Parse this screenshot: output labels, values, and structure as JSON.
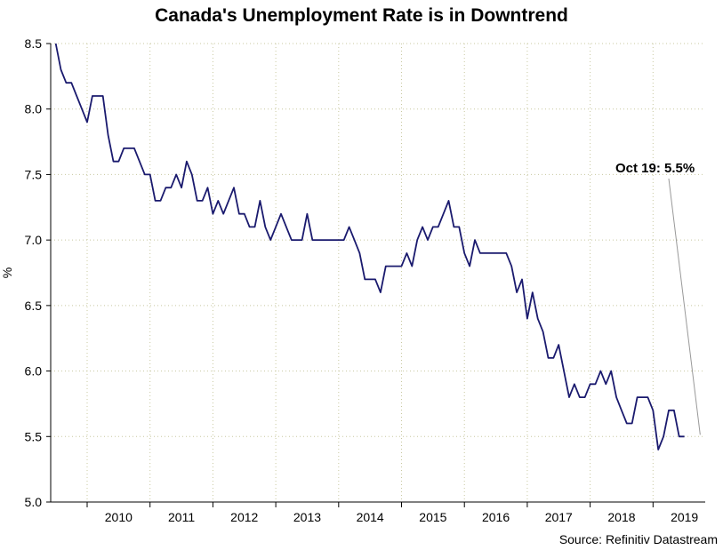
{
  "chart_data": {
    "type": "line",
    "title": "Canada's Unemployment Rate is in Downtrend",
    "ylabel": "%",
    "xlabel": "",
    "source": "Source: Refinitiv Datastream",
    "ylim": [
      5.0,
      8.5
    ],
    "yticks": [
      "5.0",
      "5.5",
      "6.0",
      "6.5",
      "7.0",
      "7.5",
      "8.0",
      "8.5"
    ],
    "xlim": [
      2009.42,
      2019.83
    ],
    "year_labels": [
      "2010",
      "2011",
      "2012",
      "2013",
      "2014",
      "2015",
      "2016",
      "2017",
      "2018",
      "2019"
    ],
    "grid": true,
    "annotation": {
      "text": "Oct 19: 5.5%",
      "x": 2019.75,
      "y": 5.5
    },
    "series": [
      {
        "name": "Canada Unemployment Rate",
        "color": "#1a1a6e",
        "start": 2009.5,
        "step": 0.08333,
        "values": [
          8.5,
          8.3,
          8.2,
          8.2,
          8.1,
          8.0,
          7.9,
          8.1,
          8.1,
          8.1,
          7.8,
          7.6,
          7.6,
          7.7,
          7.7,
          7.7,
          7.6,
          7.5,
          7.5,
          7.3,
          7.3,
          7.4,
          7.4,
          7.5,
          7.4,
          7.6,
          7.5,
          7.3,
          7.3,
          7.4,
          7.2,
          7.3,
          7.2,
          7.3,
          7.4,
          7.2,
          7.2,
          7.1,
          7.1,
          7.3,
          7.1,
          7.0,
          7.1,
          7.2,
          7.1,
          7.0,
          7.0,
          7.0,
          7.2,
          7.0,
          7.0,
          7.0,
          7.0,
          7.0,
          7.0,
          7.0,
          7.1,
          7.0,
          6.9,
          6.7,
          6.7,
          6.7,
          6.6,
          6.8,
          6.8,
          6.8,
          6.8,
          6.9,
          6.8,
          7.0,
          7.1,
          7.0,
          7.1,
          7.1,
          7.2,
          7.3,
          7.1,
          7.1,
          6.9,
          6.8,
          7.0,
          6.9,
          6.9,
          6.9,
          6.9,
          6.9,
          6.9,
          6.8,
          6.6,
          6.7,
          6.4,
          6.6,
          6.4,
          6.3,
          6.1,
          6.1,
          6.2,
          6.0,
          5.8,
          5.9,
          5.8,
          5.8,
          5.9,
          5.9,
          6.0,
          5.9,
          6.0,
          5.8,
          5.7,
          5.6,
          5.6,
          5.8,
          5.8,
          5.8,
          5.7,
          5.4,
          5.5,
          5.7,
          5.7,
          5.5,
          5.5
        ]
      }
    ]
  }
}
